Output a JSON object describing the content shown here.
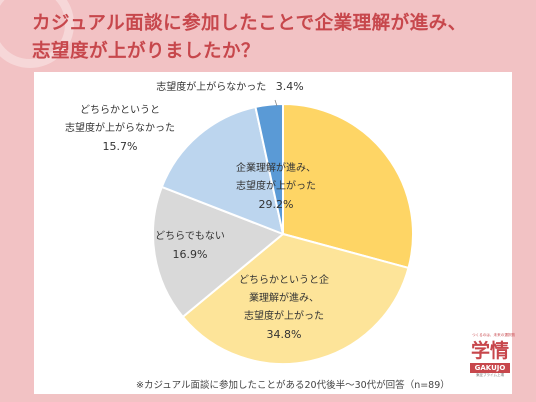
{
  "title_line1": "カジュアル面談に参加したことで企業理解が進み、",
  "title_line2": "志望度が上がりましたか？",
  "footnote": "※カジュアル面談に参加したことがある20代後半～30代が回答（n=89）",
  "logo": {
    "tagline": "つくるのは、未来の選択肢",
    "mark": "学情",
    "word": "GAKUJO",
    "sub": "東証プライム上場"
  },
  "chart_data": {
    "type": "pie",
    "title": "",
    "start_angle_deg": 0,
    "direction": "clockwise",
    "slices": [
      {
        "label": "企業理解が進み、志望度が上がった",
        "value": 29.2,
        "color": "#fed565"
      },
      {
        "label": "どちらかというと企業理解が進み、志望度が上がった",
        "value": 34.8,
        "color": "#fde499"
      },
      {
        "label": "どちらでもない",
        "value": 16.9,
        "color": "#d9d9d9"
      },
      {
        "label": "どちらかというと志望度が上がらなかった",
        "value": 15.7,
        "color": "#bcd5ee"
      },
      {
        "label": "志望度が上がらなかった",
        "value": 3.4,
        "color": "#5a9ad6"
      }
    ],
    "labels": [
      {
        "lines": [
          "企業理解が進み、",
          "志望度が上がった"
        ],
        "pct": "29.2%"
      },
      {
        "lines": [
          "どちらかというと企",
          "業理解が進み、",
          "志望度が上がった"
        ],
        "pct": "34.8%"
      },
      {
        "lines": [
          "どちらでもない"
        ],
        "pct": "16.9%"
      },
      {
        "lines": [
          "どちらかというと",
          "志望度が上がらなかった"
        ],
        "pct": "15.7%"
      },
      {
        "lines": [
          "志望度が上がらなかった"
        ],
        "pct": "3.4%"
      }
    ]
  }
}
